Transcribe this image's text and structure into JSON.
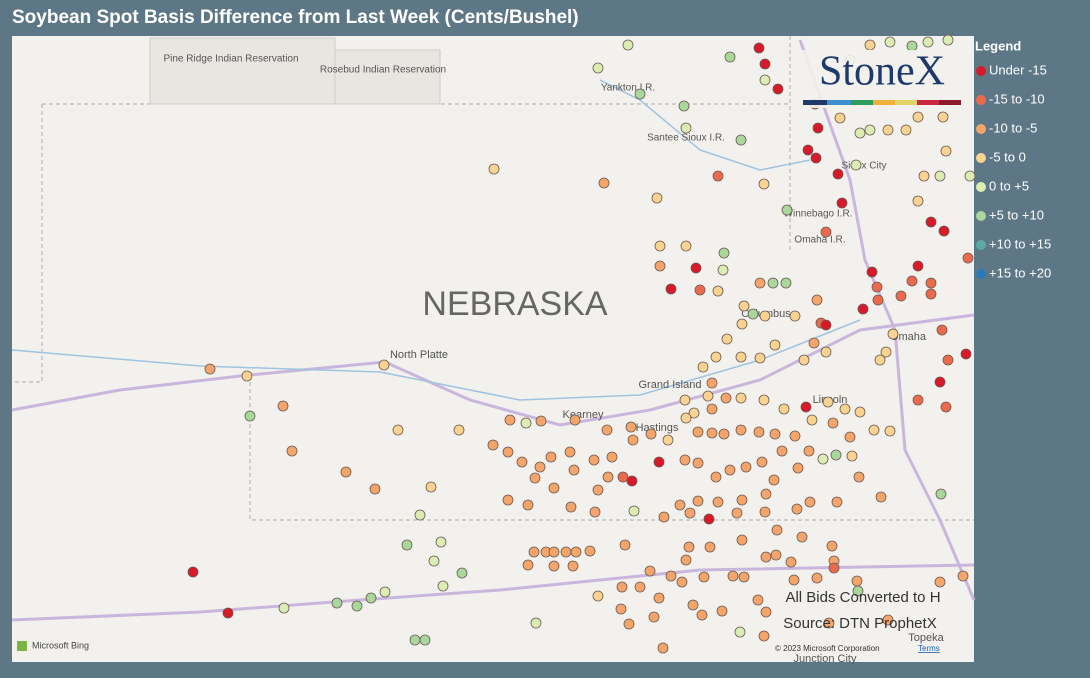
{
  "header": {
    "title": "Soybean Spot Basis Difference from Last Week (Cents/Bushel)"
  },
  "logo": "StoneX",
  "legend": {
    "title": "Legend",
    "items": [
      {
        "label": "Under -15",
        "color": "#d7192a"
      },
      {
        "label": "-15 to -10",
        "color": "#ec6a4c"
      },
      {
        "label": "-10 to -5",
        "color": "#f5a56a"
      },
      {
        "label": "-5 to 0",
        "color": "#fbd390"
      },
      {
        "label": "0 to +5",
        "color": "#dcedb3"
      },
      {
        "label": "+5 to +10",
        "color": "#a9d79c"
      },
      {
        "label": "+10 to +15",
        "color": "#5ea9a8"
      },
      {
        "label": "+15 to +20",
        "color": "#2b7bba"
      }
    ]
  },
  "map": {
    "state": "NEBRASKA",
    "places": [
      "Pine Ridge Indian Reservation",
      "Rosebud Indian Reservation",
      "Yankton I.R.",
      "Santee Sioux I.R.",
      "Sioux City",
      "Winnebago I.R.",
      "Omaha I.R.",
      "Columbus",
      "Omaha",
      "North Platte",
      "Grand Island",
      "Kearney",
      "Hastings",
      "Lincoln",
      "Topeka",
      "Junction City"
    ]
  },
  "notes": [
    "All Bids Converted to H",
    "Source: DTN ProphetX"
  ],
  "attribution": {
    "provider": "Microsoft Bing",
    "copyright": "© 2023 Microsoft Corporation",
    "terms": "Terms"
  }
}
